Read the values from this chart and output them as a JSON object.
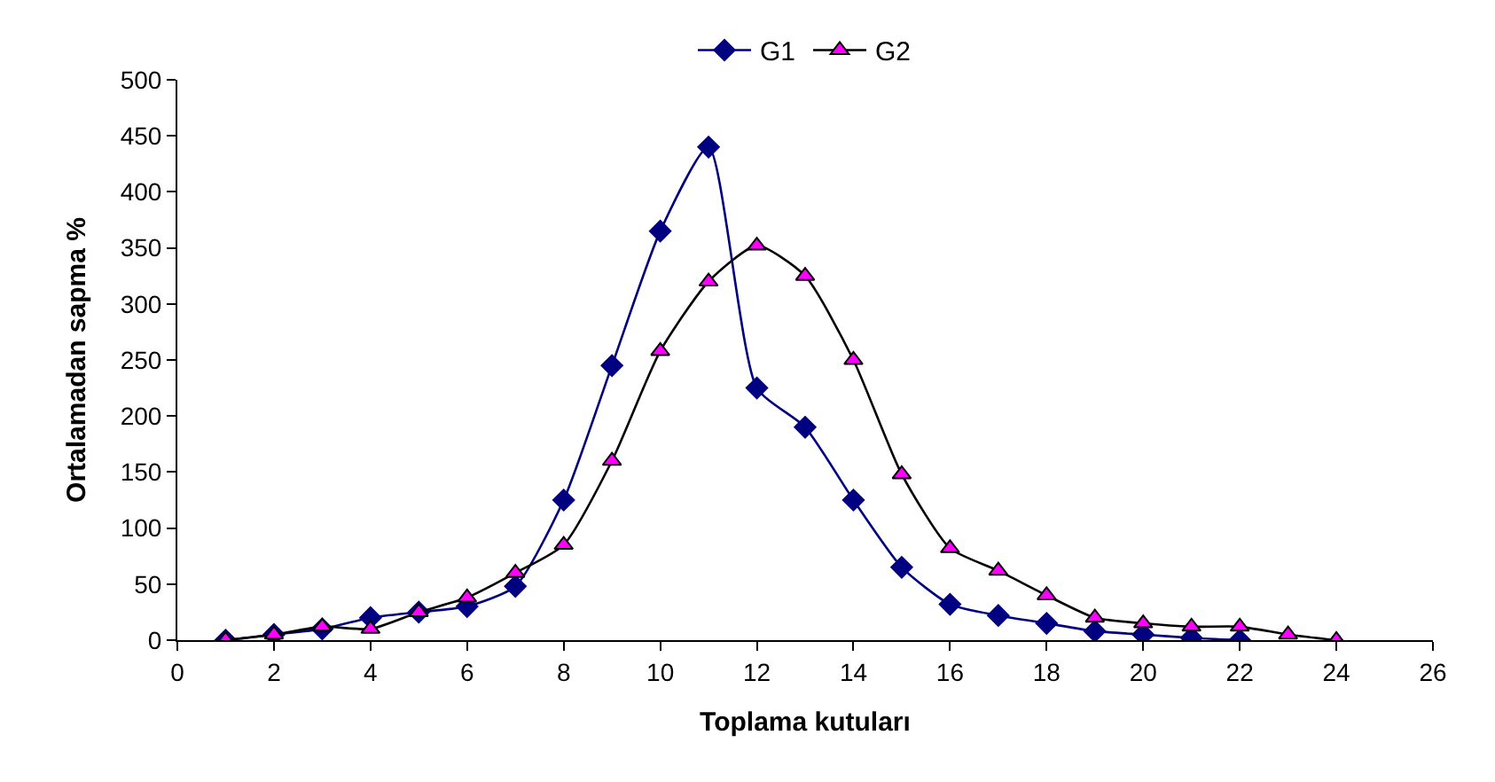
{
  "chart_data": {
    "type": "line",
    "xlabel": "Toplama kutuları",
    "ylabel": "Ortalamadan sapma %",
    "xlim": [
      0,
      26
    ],
    "xticks": [
      0,
      2,
      4,
      6,
      8,
      10,
      12,
      14,
      16,
      18,
      20,
      22,
      24,
      26
    ],
    "ylim": [
      0,
      500
    ],
    "yticks": [
      0,
      50,
      100,
      150,
      200,
      250,
      300,
      350,
      400,
      450,
      500
    ],
    "legend": "top",
    "series": [
      {
        "name": "G1",
        "color": "#000080",
        "marker": "diamond",
        "x": [
          1,
          2,
          3,
          4,
          5,
          6,
          7,
          8,
          9,
          10,
          11,
          12,
          13,
          14,
          15,
          16,
          17,
          18,
          19,
          20,
          21,
          22
        ],
        "values": [
          0,
          5,
          10,
          20,
          25,
          30,
          48,
          125,
          245,
          365,
          440,
          225,
          190,
          125,
          65,
          32,
          22,
          15,
          8,
          5,
          2,
          0
        ]
      },
      {
        "name": "G2",
        "color": "#000000",
        "colors": [
          "#ff00ff",
          "#ff00ff",
          "#ff00ff",
          "#ff00ff",
          "#ff00ff",
          "#ff00ff",
          "#ff00ff",
          "#ff00ff",
          "#ff00ff",
          "#ff00ff",
          "#ff00ff",
          "#ff00ff",
          "#ff00ff",
          "#ff00ff",
          "#ff00ff",
          "#ff00ff",
          "#ff00ff",
          "#ff00ff",
          "#ff00ff",
          "#ff00ff",
          "#ff00ff",
          "#ff00ff",
          "#ff00ff",
          "#ff00ff"
        ],
        "marker": "triangle",
        "x": [
          1,
          2,
          3,
          4,
          5,
          6,
          7,
          8,
          9,
          10,
          11,
          12,
          13,
          14,
          15,
          16,
          17,
          18,
          19,
          20,
          21,
          22,
          23,
          24
        ],
        "values": [
          0,
          5,
          12,
          10,
          25,
          38,
          60,
          85,
          160,
          258,
          320,
          352,
          325,
          250,
          148,
          82,
          62,
          40,
          20,
          15,
          12,
          12,
          5,
          0
        ]
      }
    ]
  }
}
